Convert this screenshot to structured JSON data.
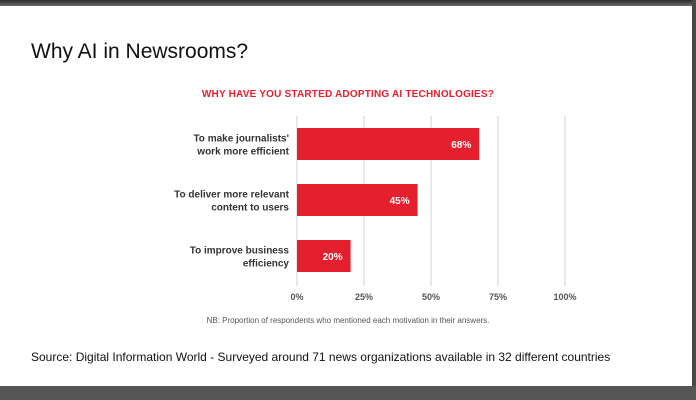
{
  "page": {
    "title": "Why AI in Newsrooms?",
    "source": "Source: Digital Information World - Surveyed around 71 news organizations available in 32 different countries"
  },
  "chart_data": {
    "type": "bar",
    "orientation": "horizontal",
    "title": "WHY HAVE YOU STARTED ADOPTING AI TECHNOLOGIES?",
    "categories": [
      [
        "To make journalists'",
        "work more efficient"
      ],
      [
        "To deliver more relevant",
        "content to users"
      ],
      [
        "To improve business",
        "efficiency"
      ]
    ],
    "values": [
      68,
      45,
      20
    ],
    "data_labels": [
      "68%",
      "45%",
      "20%"
    ],
    "xlim": [
      0,
      100
    ],
    "xticks": [
      0,
      25,
      50,
      75,
      100
    ],
    "xtick_labels": [
      "0%",
      "25%",
      "50%",
      "75%",
      "100%"
    ],
    "grid": true,
    "bar_color": "#e4202f",
    "note": "NB: Proportion of respondents who mentioned each motivation in their answers."
  }
}
